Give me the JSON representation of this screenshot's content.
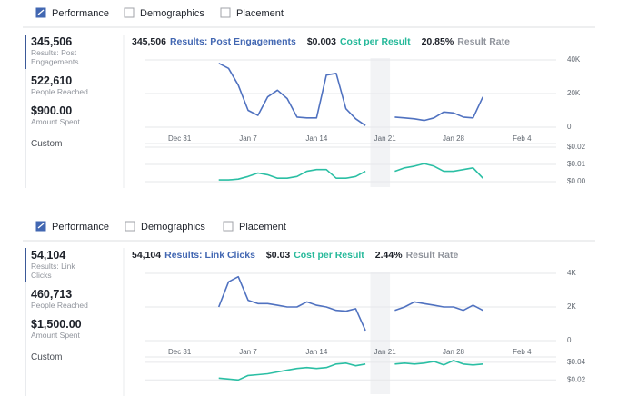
{
  "panels": [
    {
      "tabs": [
        "Performance",
        "Demographics",
        "Placement"
      ],
      "stats": [
        {
          "value": "345,506",
          "label": "Results: Post Engagements"
        },
        {
          "value": "522,610",
          "label": "People Reached"
        },
        {
          "value": "$900.00",
          "label": "Amount Spent"
        }
      ],
      "custom": "Custom",
      "summary": [
        {
          "value": "345,506",
          "label": "Results: Post Engagements",
          "color": "#4267b2"
        },
        {
          "value": "$0.003",
          "label": "Cost per Result",
          "color": "#26b99a"
        },
        {
          "value": "20.85%",
          "label": "Result Rate",
          "color": "#90949c"
        }
      ],
      "chart_data": [
        {
          "type": "line",
          "color": "#5072c0",
          "grid": true,
          "categories": [
            null,
            null,
            null,
            "Dec 31",
            null,
            null,
            null,
            null,
            null,
            null,
            "Jan 7",
            null,
            null,
            null,
            null,
            null,
            null,
            "Jan 14",
            null,
            null,
            null,
            null,
            null,
            null,
            "Jan 21",
            null,
            null,
            null,
            null,
            null,
            null,
            "Jan 28",
            null,
            null,
            null,
            null,
            null,
            null,
            "Feb 4",
            null,
            null,
            null
          ],
          "values": [
            null,
            null,
            null,
            null,
            null,
            null,
            null,
            38000,
            35000,
            25000,
            10000,
            7000,
            18000,
            22000,
            17000,
            6000,
            5500,
            5500,
            31000,
            32000,
            11000,
            5000,
            1000,
            null,
            null,
            6000,
            5500,
            5000,
            4000,
            5500,
            9000,
            8500,
            6000,
            5500,
            18000,
            null,
            null,
            null,
            null,
            null,
            null,
            null
          ],
          "ylim": [
            0,
            40000
          ],
          "yticks": [
            0,
            {
              "value": 20000,
              "label": "20K"
            },
            {
              "value": 40000,
              "label": "40K"
            }
          ]
        },
        {
          "type": "line",
          "color": "#2bbfa4",
          "grid": true,
          "values": [
            null,
            null,
            null,
            null,
            null,
            null,
            null,
            0.001,
            0.001,
            0.0015,
            0.003,
            0.005,
            0.004,
            0.002,
            0.002,
            0.003,
            0.006,
            0.007,
            0.007,
            0.002,
            0.002,
            0.003,
            0.006,
            null,
            null,
            0.006,
            0.008,
            0.009,
            0.0105,
            0.009,
            0.006,
            0.006,
            0.007,
            0.008,
            0.002,
            null,
            null,
            null,
            null,
            null,
            null,
            null
          ],
          "ylim": [
            0,
            0.02
          ],
          "yticks": [
            {
              "value": 0,
              "label": "$0.00"
            },
            {
              "value": 0.01,
              "label": "$0.01"
            },
            {
              "value": 0.02,
              "label": "$0.02"
            }
          ]
        }
      ]
    },
    {
      "tabs": [
        "Performance",
        "Demographics",
        "Placement"
      ],
      "stats": [
        {
          "value": "54,104",
          "label": "Results: Link Clicks"
        },
        {
          "value": "460,713",
          "label": "People Reached"
        },
        {
          "value": "$1,500.00",
          "label": "Amount Spent"
        }
      ],
      "custom": "Custom",
      "summary": [
        {
          "value": "54,104",
          "label": "Results: Link Clicks",
          "color": "#4267b2"
        },
        {
          "value": "$0.03",
          "label": "Cost per Result",
          "color": "#26b99a"
        },
        {
          "value": "2.44%",
          "label": "Result Rate",
          "color": "#90949c"
        }
      ],
      "chart_data": [
        {
          "type": "line",
          "color": "#5072c0",
          "grid": true,
          "categories": [
            null,
            null,
            null,
            "Dec 31",
            null,
            null,
            null,
            null,
            null,
            null,
            "Jan 7",
            null,
            null,
            null,
            null,
            null,
            null,
            "Jan 14",
            null,
            null,
            null,
            null,
            null,
            null,
            "Jan 21",
            null,
            null,
            null,
            null,
            null,
            null,
            "Jan 28",
            null,
            null,
            null,
            null,
            null,
            null,
            "Feb 4",
            null,
            null,
            null
          ],
          "values": [
            null,
            null,
            null,
            null,
            null,
            null,
            null,
            2000,
            3500,
            3800,
            2400,
            2200,
            2200,
            2100,
            2000,
            2000,
            2300,
            2100,
            2000,
            1800,
            1750,
            1900,
            600,
            null,
            null,
            1800,
            2000,
            2300,
            2200,
            2100,
            2000,
            2000,
            1800,
            2100,
            1800,
            null,
            null,
            null,
            null,
            null,
            null,
            null
          ],
          "ylim": [
            0,
            4000
          ],
          "yticks": [
            0,
            {
              "value": 2000,
              "label": "2K"
            },
            {
              "value": 4000,
              "label": "4K"
            }
          ]
        },
        {
          "type": "line",
          "color": "#2bbfa4",
          "grid": true,
          "values": [
            null,
            null,
            null,
            null,
            null,
            null,
            null,
            0.022,
            0.021,
            0.02,
            0.025,
            0.026,
            0.027,
            0.029,
            0.031,
            0.033,
            0.034,
            0.033,
            0.034,
            0.038,
            0.039,
            0.036,
            0.038,
            null,
            null,
            0.038,
            0.039,
            0.038,
            0.039,
            0.041,
            0.037,
            0.042,
            0.038,
            0.037,
            0.038,
            null,
            null,
            null,
            null,
            null,
            null,
            null
          ],
          "ylim": [
            0.01,
            0.045
          ],
          "yticks": [
            {
              "value": 0.02,
              "label": "$0.02"
            },
            {
              "value": 0.04,
              "label": "$0.04"
            }
          ]
        }
      ]
    }
  ]
}
